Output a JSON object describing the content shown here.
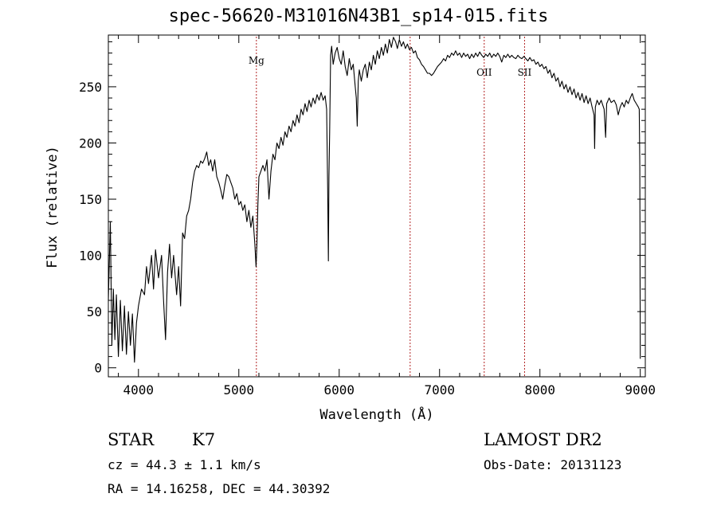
{
  "chart_data": {
    "type": "line",
    "title": "spec-56620-M31016N43B1_sp14-015.fits",
    "xlabel": "Wavelength (Å)",
    "ylabel": "Flux (relative)",
    "xlim": [
      3700,
      9050
    ],
    "ylim": [
      -8,
      296
    ],
    "xticks": [
      4000,
      5000,
      6000,
      7000,
      8000,
      9000
    ],
    "yticks": [
      0,
      50,
      100,
      150,
      200,
      250
    ],
    "grid": false,
    "line_color": "#000000",
    "marker_color": "#b22222",
    "series": [
      {
        "points": [
          [
            3700,
            60
          ],
          [
            3720,
            130
          ],
          [
            3735,
            20
          ],
          [
            3750,
            70
          ],
          [
            3765,
            25
          ],
          [
            3780,
            65
          ],
          [
            3800,
            10
          ],
          [
            3820,
            60
          ],
          [
            3840,
            15
          ],
          [
            3860,
            55
          ],
          [
            3880,
            12
          ],
          [
            3900,
            50
          ],
          [
            3920,
            20
          ],
          [
            3940,
            48
          ],
          [
            3960,
            5
          ],
          [
            3980,
            40
          ],
          [
            4000,
            55
          ],
          [
            4030,
            70
          ],
          [
            4060,
            65
          ],
          [
            4080,
            90
          ],
          [
            4100,
            75
          ],
          [
            4130,
            100
          ],
          [
            4150,
            70
          ],
          [
            4170,
            105
          ],
          [
            4200,
            80
          ],
          [
            4230,
            100
          ],
          [
            4250,
            60
          ],
          [
            4270,
            25
          ],
          [
            4290,
            85
          ],
          [
            4310,
            110
          ],
          [
            4330,
            80
          ],
          [
            4350,
            100
          ],
          [
            4380,
            65
          ],
          [
            4400,
            90
          ],
          [
            4420,
            55
          ],
          [
            4440,
            120
          ],
          [
            4460,
            115
          ],
          [
            4480,
            135
          ],
          [
            4500,
            140
          ],
          [
            4520,
            150
          ],
          [
            4540,
            165
          ],
          [
            4560,
            175
          ],
          [
            4580,
            180
          ],
          [
            4600,
            178
          ],
          [
            4620,
            184
          ],
          [
            4640,
            182
          ],
          [
            4660,
            186
          ],
          [
            4680,
            192
          ],
          [
            4700,
            180
          ],
          [
            4720,
            185
          ],
          [
            4740,
            175
          ],
          [
            4760,
            185
          ],
          [
            4780,
            170
          ],
          [
            4800,
            165
          ],
          [
            4820,
            158
          ],
          [
            4840,
            150
          ],
          [
            4860,
            162
          ],
          [
            4880,
            172
          ],
          [
            4900,
            170
          ],
          [
            4920,
            165
          ],
          [
            4940,
            160
          ],
          [
            4960,
            150
          ],
          [
            4980,
            155
          ],
          [
            5000,
            145
          ],
          [
            5020,
            148
          ],
          [
            5040,
            140
          ],
          [
            5060,
            145
          ],
          [
            5080,
            130
          ],
          [
            5100,
            140
          ],
          [
            5120,
            125
          ],
          [
            5140,
            135
          ],
          [
            5160,
            110
          ],
          [
            5172,
            90
          ],
          [
            5180,
            110
          ],
          [
            5190,
            145
          ],
          [
            5200,
            170
          ],
          [
            5220,
            175
          ],
          [
            5240,
            180
          ],
          [
            5260,
            175
          ],
          [
            5280,
            185
          ],
          [
            5300,
            150
          ],
          [
            5320,
            175
          ],
          [
            5340,
            190
          ],
          [
            5360,
            185
          ],
          [
            5380,
            200
          ],
          [
            5400,
            195
          ],
          [
            5420,
            205
          ],
          [
            5440,
            198
          ],
          [
            5460,
            210
          ],
          [
            5480,
            205
          ],
          [
            5500,
            215
          ],
          [
            5520,
            210
          ],
          [
            5540,
            220
          ],
          [
            5560,
            215
          ],
          [
            5580,
            225
          ],
          [
            5600,
            218
          ],
          [
            5620,
            230
          ],
          [
            5640,
            225
          ],
          [
            5660,
            235
          ],
          [
            5680,
            228
          ],
          [
            5700,
            238
          ],
          [
            5720,
            232
          ],
          [
            5740,
            240
          ],
          [
            5760,
            235
          ],
          [
            5780,
            243
          ],
          [
            5800,
            238
          ],
          [
            5820,
            245
          ],
          [
            5840,
            238
          ],
          [
            5860,
            242
          ],
          [
            5875,
            230
          ],
          [
            5885,
            160
          ],
          [
            5892,
            95
          ],
          [
            5898,
            170
          ],
          [
            5905,
            210
          ],
          [
            5915,
            278
          ],
          [
            5925,
            286
          ],
          [
            5940,
            270
          ],
          [
            5960,
            280
          ],
          [
            5980,
            285
          ],
          [
            6000,
            275
          ],
          [
            6020,
            270
          ],
          [
            6040,
            282
          ],
          [
            6060,
            268
          ],
          [
            6080,
            260
          ],
          [
            6100,
            275
          ],
          [
            6120,
            265
          ],
          [
            6140,
            270
          ],
          [
            6160,
            250
          ],
          [
            6170,
            240
          ],
          [
            6180,
            215
          ],
          [
            6190,
            255
          ],
          [
            6200,
            265
          ],
          [
            6220,
            255
          ],
          [
            6240,
            265
          ],
          [
            6260,
            270
          ],
          [
            6280,
            258
          ],
          [
            6300,
            272
          ],
          [
            6320,
            265
          ],
          [
            6340,
            278
          ],
          [
            6360,
            270
          ],
          [
            6380,
            282
          ],
          [
            6400,
            275
          ],
          [
            6420,
            285
          ],
          [
            6440,
            278
          ],
          [
            6460,
            288
          ],
          [
            6480,
            280
          ],
          [
            6500,
            292
          ],
          [
            6520,
            285
          ],
          [
            6540,
            294
          ],
          [
            6562,
            290
          ],
          [
            6580,
            284
          ],
          [
            6600,
            292
          ],
          [
            6620,
            286
          ],
          [
            6640,
            290
          ],
          [
            6660,
            284
          ],
          [
            6680,
            288
          ],
          [
            6700,
            283
          ],
          [
            6720,
            285
          ],
          [
            6740,
            280
          ],
          [
            6760,
            282
          ],
          [
            6780,
            276
          ],
          [
            6800,
            274
          ],
          [
            6820,
            270
          ],
          [
            6840,
            268
          ],
          [
            6860,
            265
          ],
          [
            6880,
            262
          ],
          [
            6900,
            262
          ],
          [
            6920,
            260
          ],
          [
            6940,
            262
          ],
          [
            6960,
            265
          ],
          [
            6980,
            268
          ],
          [
            7000,
            270
          ],
          [
            7020,
            272
          ],
          [
            7040,
            275
          ],
          [
            7060,
            273
          ],
          [
            7080,
            278
          ],
          [
            7100,
            276
          ],
          [
            7120,
            280
          ],
          [
            7140,
            278
          ],
          [
            7160,
            282
          ],
          [
            7180,
            278
          ],
          [
            7200,
            280
          ],
          [
            7220,
            276
          ],
          [
            7240,
            280
          ],
          [
            7260,
            277
          ],
          [
            7280,
            279
          ],
          [
            7300,
            275
          ],
          [
            7320,
            279
          ],
          [
            7340,
            276
          ],
          [
            7360,
            280
          ],
          [
            7380,
            277
          ],
          [
            7400,
            281
          ],
          [
            7420,
            278
          ],
          [
            7440,
            276
          ],
          [
            7460,
            279
          ],
          [
            7480,
            277
          ],
          [
            7500,
            280
          ],
          [
            7520,
            276
          ],
          [
            7540,
            279
          ],
          [
            7560,
            277
          ],
          [
            7580,
            280
          ],
          [
            7600,
            277
          ],
          [
            7620,
            272
          ],
          [
            7640,
            278
          ],
          [
            7660,
            276
          ],
          [
            7680,
            279
          ],
          [
            7700,
            276
          ],
          [
            7720,
            278
          ],
          [
            7740,
            276
          ],
          [
            7760,
            275
          ],
          [
            7780,
            278
          ],
          [
            7800,
            276
          ],
          [
            7820,
            275
          ],
          [
            7840,
            277
          ],
          [
            7860,
            275
          ],
          [
            7880,
            273
          ],
          [
            7900,
            276
          ],
          [
            7920,
            273
          ],
          [
            7940,
            274
          ],
          [
            7960,
            270
          ],
          [
            7980,
            272
          ],
          [
            8000,
            268
          ],
          [
            8020,
            270
          ],
          [
            8040,
            266
          ],
          [
            8060,
            268
          ],
          [
            8080,
            262
          ],
          [
            8100,
            265
          ],
          [
            8120,
            258
          ],
          [
            8140,
            262
          ],
          [
            8160,
            255
          ],
          [
            8180,
            258
          ],
          [
            8200,
            250
          ],
          [
            8220,
            255
          ],
          [
            8240,
            248
          ],
          [
            8260,
            252
          ],
          [
            8280,
            245
          ],
          [
            8300,
            250
          ],
          [
            8320,
            243
          ],
          [
            8340,
            248
          ],
          [
            8360,
            240
          ],
          [
            8380,
            245
          ],
          [
            8400,
            238
          ],
          [
            8420,
            244
          ],
          [
            8440,
            236
          ],
          [
            8460,
            242
          ],
          [
            8480,
            235
          ],
          [
            8500,
            240
          ],
          [
            8520,
            232
          ],
          [
            8540,
            225
          ],
          [
            8545,
            195
          ],
          [
            8552,
            232
          ],
          [
            8570,
            238
          ],
          [
            8590,
            234
          ],
          [
            8610,
            238
          ],
          [
            8640,
            230
          ],
          [
            8655,
            205
          ],
          [
            8665,
            235
          ],
          [
            8690,
            240
          ],
          [
            8710,
            236
          ],
          [
            8740,
            238
          ],
          [
            8760,
            234
          ],
          [
            8780,
            225
          ],
          [
            8800,
            232
          ],
          [
            8820,
            236
          ],
          [
            8840,
            232
          ],
          [
            8860,
            238
          ],
          [
            8880,
            235
          ],
          [
            8900,
            240
          ],
          [
            8920,
            244
          ],
          [
            8940,
            238
          ],
          [
            8960,
            235
          ],
          [
            8980,
            232
          ],
          [
            8990,
            230
          ],
          [
            8995,
            180
          ],
          [
            9000,
            8
          ]
        ]
      }
    ],
    "line_markers": [
      {
        "label": "Mg",
        "x": 5175
      },
      {
        "label": "",
        "x": 6707
      },
      {
        "label": "OII",
        "x": 7445
      },
      {
        "label": "SII",
        "x": 7847
      }
    ]
  },
  "info": {
    "class": "STAR",
    "subclass": "K7",
    "survey": "LAMOST DR2",
    "redshift": "cz = 44.3 ± 1.1 km/s",
    "obs_date": "Obs-Date: 20131123",
    "coords": "RA =  14.16258, DEC =  44.30392"
  }
}
